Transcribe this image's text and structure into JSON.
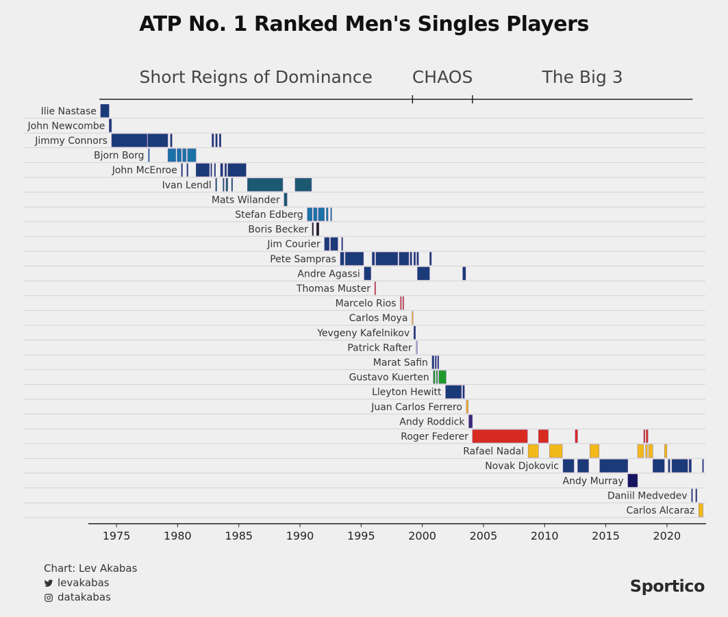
{
  "title": "ATP No. 1 Ranked Men's Singles Players",
  "credits": {
    "chart_by": "Chart: Lev Akabas",
    "twitter": "levakabas",
    "instagram": "datakabas"
  },
  "brand": "Sportico",
  "chart_data": {
    "type": "timeline",
    "eras": [
      {
        "label": "Short Reigns of Dominance",
        "start": 1973.6,
        "end": 1999.2
      },
      {
        "label": "CHAOS",
        "start": 1999.2,
        "end": 2004.1
      },
      {
        "label": "The Big 3",
        "start": 2004.1,
        "end": 2022.1
      }
    ],
    "xlim": [
      1972.7,
      2023.2
    ],
    "xticks": [
      1975,
      1980,
      1985,
      1990,
      1995,
      2000,
      2005,
      2010,
      2015,
      2020
    ],
    "players": [
      {
        "name": "Ilie Nastase",
        "color": "#1b3a78",
        "spans": [
          [
            1973.7,
            1974.4
          ]
        ]
      },
      {
        "name": "John Newcombe",
        "color": "#1b3a78",
        "spans": [
          [
            1974.4,
            1974.6
          ]
        ]
      },
      {
        "name": "Jimmy Connors",
        "color": "#1b3a78",
        "spans": [
          [
            1974.6,
            1977.5
          ],
          [
            1977.55,
            1979.2
          ],
          [
            1979.4,
            1979.55
          ],
          [
            1982.8,
            1982.95
          ],
          [
            1983.1,
            1983.25
          ],
          [
            1983.4,
            1983.55
          ]
        ]
      },
      {
        "name": "Bjorn Borg",
        "color": "#1a72a6",
        "spans": [
          [
            1977.6,
            1977.7
          ],
          [
            1979.2,
            1979.85
          ],
          [
            1979.95,
            1980.3
          ],
          [
            1980.4,
            1980.7
          ],
          [
            1980.8,
            1981.5
          ]
        ]
      },
      {
        "name": "John McEnroe",
        "color": "#1b3a78",
        "spans": [
          [
            1980.3,
            1980.4
          ],
          [
            1980.75,
            1980.85
          ],
          [
            1981.5,
            1982.6
          ],
          [
            1982.7,
            1982.8
          ],
          [
            1983.0,
            1983.1
          ],
          [
            1983.5,
            1983.7
          ],
          [
            1983.85,
            1984.0
          ],
          [
            1984.1,
            1985.6
          ]
        ]
      },
      {
        "name": "Ivan Lendl",
        "color": "#1c5a72",
        "spans": [
          [
            1983.1,
            1983.2
          ],
          [
            1983.7,
            1983.8
          ],
          [
            1983.95,
            1984.1
          ],
          [
            1984.4,
            1984.5
          ],
          [
            1985.7,
            1988.6
          ],
          [
            1989.6,
            1990.95
          ]
        ]
      },
      {
        "name": "Mats Wilander",
        "color": "#1c5a72",
        "spans": [
          [
            1988.7,
            1988.95
          ]
        ]
      },
      {
        "name": "Stefan Edberg",
        "color": "#1a72a6",
        "spans": [
          [
            1990.6,
            1991.0
          ],
          [
            1991.1,
            1991.4
          ],
          [
            1991.5,
            1992.0
          ],
          [
            1992.15,
            1992.3
          ],
          [
            1992.5,
            1992.6
          ]
        ]
      },
      {
        "name": "Boris Becker",
        "color": "#1a1a1a",
        "spans": [
          [
            1991.0,
            1991.1
          ],
          [
            1991.35,
            1991.55
          ]
        ]
      },
      {
        "name": "Jim Courier",
        "color": "#1b3a78",
        "spans": [
          [
            1992.0,
            1992.4
          ],
          [
            1992.5,
            1993.1
          ],
          [
            1993.4,
            1993.5
          ]
        ]
      },
      {
        "name": "Pete Sampras",
        "color": "#1b3a78",
        "spans": [
          [
            1993.3,
            1993.6
          ],
          [
            1993.7,
            1995.2
          ],
          [
            1995.9,
            1996.1
          ],
          [
            1996.2,
            1998.0
          ],
          [
            1998.1,
            1998.9
          ],
          [
            1999.0,
            1999.15
          ],
          [
            1999.3,
            1999.45
          ],
          [
            1999.55,
            1999.7
          ],
          [
            2000.6,
            2000.75
          ]
        ]
      },
      {
        "name": "Andre Agassi",
        "color": "#1b3a78",
        "spans": [
          [
            1995.25,
            1995.8
          ],
          [
            1999.6,
            2000.6
          ],
          [
            2003.3,
            2003.55
          ]
        ]
      },
      {
        "name": "Thomas Muster",
        "color": "#e0514a",
        "spans": [
          [
            1996.1,
            1996.2
          ]
        ]
      },
      {
        "name": "Marcelo Rios",
        "color": "#e0514a",
        "spans": [
          [
            1998.2,
            1998.3
          ],
          [
            1998.4,
            1998.5
          ]
        ]
      },
      {
        "name": "Carlos Moya",
        "color": "#f0c040",
        "spans": [
          [
            1999.15,
            1999.25
          ]
        ]
      },
      {
        "name": "Yevgeny Kafelnikov",
        "color": "#1b3a78",
        "spans": [
          [
            1999.3,
            1999.45
          ]
        ]
      },
      {
        "name": "Patrick Rafter",
        "color": "#9aa9c9",
        "spans": [
          [
            1999.5,
            1999.6
          ]
        ]
      },
      {
        "name": "Marat Safin",
        "color": "#1b3a78",
        "spans": [
          [
            2000.8,
            2000.95
          ],
          [
            2001.05,
            2001.15
          ],
          [
            2001.25,
            2001.35
          ]
        ]
      },
      {
        "name": "Gustavo Kuerten",
        "color": "#1f9a2a",
        "spans": [
          [
            2000.9,
            2001.05
          ],
          [
            2001.15,
            2001.25
          ],
          [
            2001.35,
            2001.95
          ]
        ]
      },
      {
        "name": "Lleyton Hewitt",
        "color": "#1b3a78",
        "spans": [
          [
            2001.9,
            2003.2
          ],
          [
            2003.3,
            2003.45
          ]
        ]
      },
      {
        "name": "Juan Carlos Ferrero",
        "color": "#f0b020",
        "spans": [
          [
            2003.6,
            2003.75
          ]
        ]
      },
      {
        "name": "Andy Roddick",
        "color": "#3a2a7a",
        "spans": [
          [
            2003.8,
            2004.1
          ]
        ]
      },
      {
        "name": "Roger Federer",
        "color": "#d82a20",
        "spans": [
          [
            2004.1,
            2008.6
          ],
          [
            2009.5,
            2010.3
          ],
          [
            2012.5,
            2012.7
          ],
          [
            2018.1,
            2018.2
          ],
          [
            2018.3,
            2018.45
          ]
        ]
      },
      {
        "name": "Rafael Nadal",
        "color": "#f2b91a",
        "spans": [
          [
            2008.65,
            2009.5
          ],
          [
            2010.4,
            2011.45
          ],
          [
            2013.7,
            2014.45
          ],
          [
            2017.6,
            2018.1
          ],
          [
            2018.25,
            2018.4
          ],
          [
            2018.5,
            2018.85
          ],
          [
            2019.8,
            2020.0
          ]
        ]
      },
      {
        "name": "Novak Djokovic",
        "color": "#1b3a78",
        "spans": [
          [
            2011.5,
            2012.4
          ],
          [
            2012.7,
            2013.6
          ],
          [
            2014.5,
            2016.8
          ],
          [
            2018.85,
            2019.8
          ],
          [
            2020.1,
            2020.25
          ],
          [
            2020.4,
            2021.7
          ],
          [
            2021.8,
            2022.0
          ],
          [
            2022.9,
            2023.0
          ]
        ]
      },
      {
        "name": "Andy Murray",
        "color": "#151560",
        "spans": [
          [
            2016.8,
            2017.6
          ]
        ]
      },
      {
        "name": "Daniil Medvedev",
        "color": "#1b3a78",
        "spans": [
          [
            2022.0,
            2022.1
          ],
          [
            2022.35,
            2022.45
          ]
        ]
      },
      {
        "name": "Carlos Alcaraz",
        "color": "#f2b91a",
        "spans": [
          [
            2022.6,
            2022.95
          ]
        ]
      }
    ]
  }
}
